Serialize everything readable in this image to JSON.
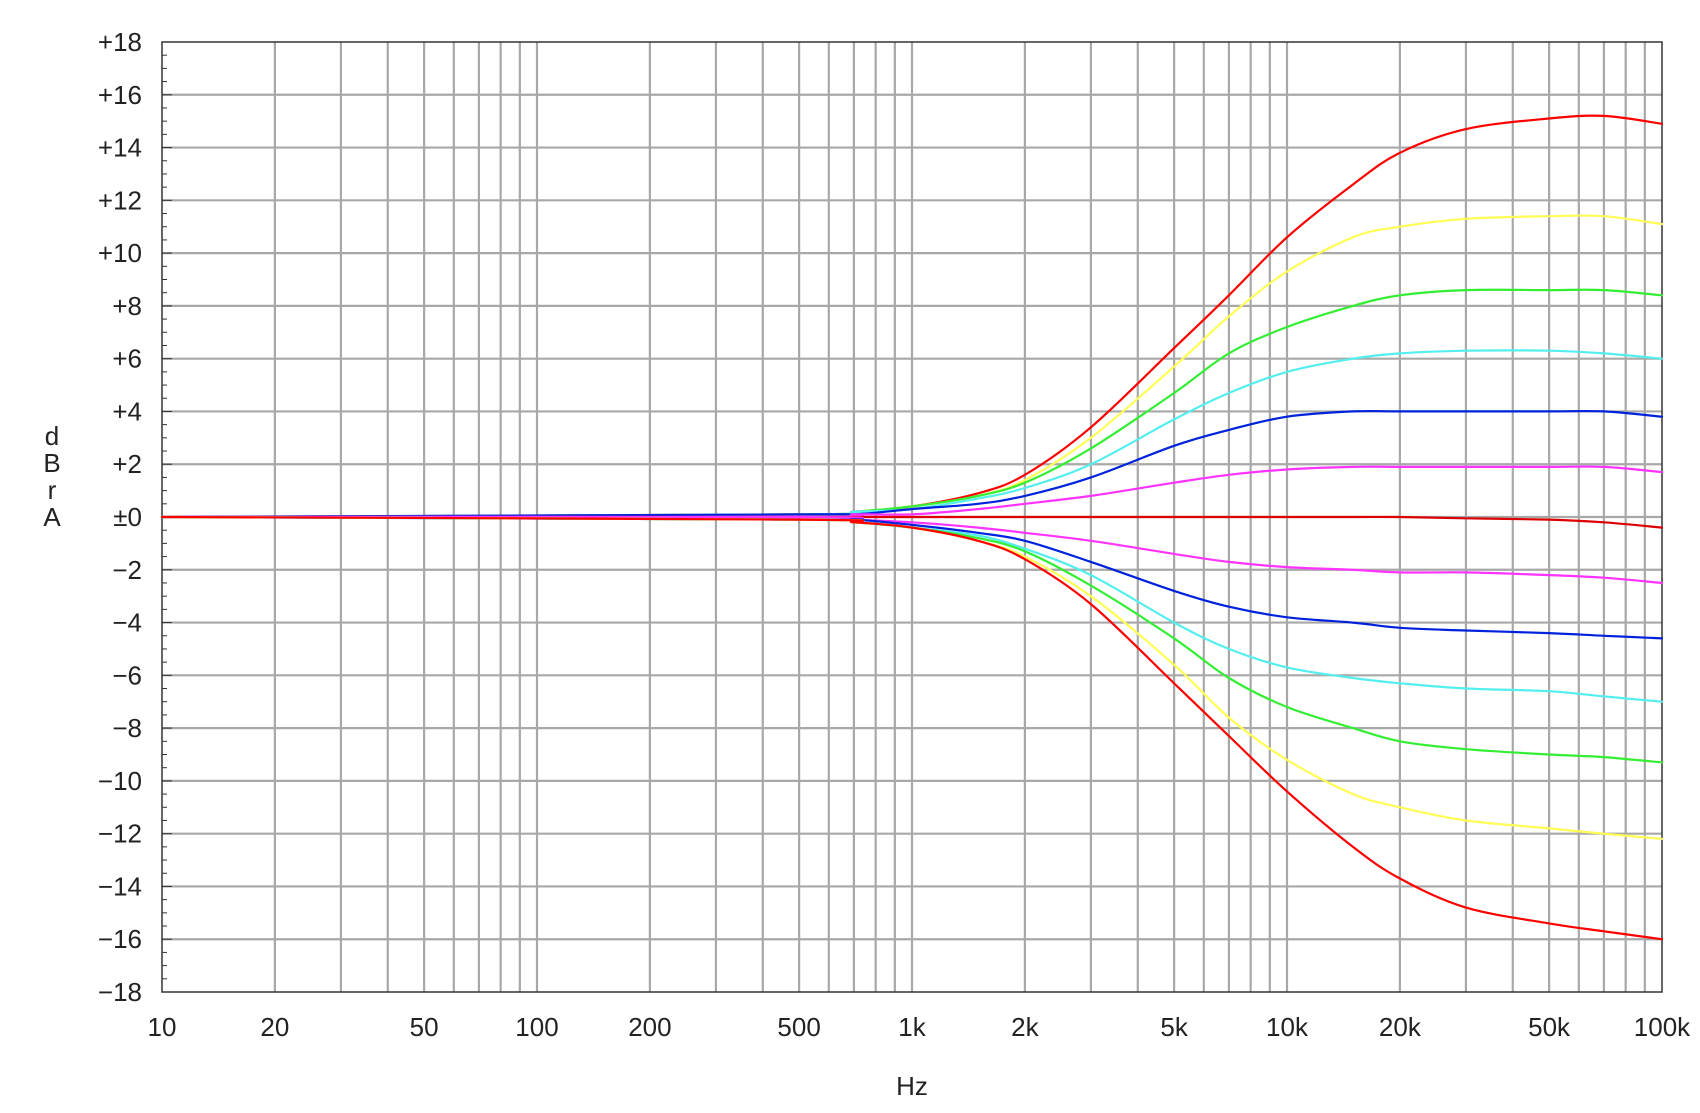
{
  "chart_data": {
    "type": "line",
    "title": "",
    "xlabel": "Hz",
    "ylabel": "dBrA",
    "x_scale": "log",
    "xlim": [
      10,
      100000
    ],
    "ylim": [
      -18,
      18
    ],
    "grid": true,
    "legend": "none",
    "x_ticks": [
      {
        "v": 10,
        "label": "10"
      },
      {
        "v": 20,
        "label": "20"
      },
      {
        "v": 50,
        "label": "50"
      },
      {
        "v": 100,
        "label": "100"
      },
      {
        "v": 200,
        "label": "200"
      },
      {
        "v": 500,
        "label": "500"
      },
      {
        "v": 1000,
        "label": "1k"
      },
      {
        "v": 2000,
        "label": "2k"
      },
      {
        "v": 5000,
        "label": "5k"
      },
      {
        "v": 10000,
        "label": "10k"
      },
      {
        "v": 20000,
        "label": "20k"
      },
      {
        "v": 50000,
        "label": "50k"
      },
      {
        "v": 100000,
        "label": "100k"
      }
    ],
    "y_ticks": [
      {
        "v": 18,
        "label": "+18"
      },
      {
        "v": 16,
        "label": "+16"
      },
      {
        "v": 14,
        "label": "+14"
      },
      {
        "v": 12,
        "label": "+12"
      },
      {
        "v": 10,
        "label": "+10"
      },
      {
        "v": 8,
        "label": "+8"
      },
      {
        "v": 6,
        "label": "+6"
      },
      {
        "v": 4,
        "label": "+4"
      },
      {
        "v": 2,
        "label": "+2"
      },
      {
        "v": 0,
        "label": "±0"
      },
      {
        "v": -2,
        "label": "−2"
      },
      {
        "v": -4,
        "label": "−4"
      },
      {
        "v": -6,
        "label": "−6"
      },
      {
        "v": -8,
        "label": "−8"
      },
      {
        "v": -10,
        "label": "−10"
      },
      {
        "v": -12,
        "label": "−12"
      },
      {
        "v": -14,
        "label": "−14"
      },
      {
        "v": -16,
        "label": "−16"
      },
      {
        "v": -18,
        "label": "−18"
      }
    ],
    "x": [
      10,
      500,
      700,
      1000,
      1500,
      2000,
      3000,
      5000,
      7000,
      10000,
      15000,
      20000,
      30000,
      50000,
      70000,
      100000
    ],
    "series": [
      {
        "color": "#ff0000",
        "values": [
          0,
          0.1,
          0.2,
          0.4,
          0.9,
          1.6,
          3.4,
          6.4,
          8.4,
          10.6,
          12.6,
          13.8,
          14.7,
          15.1,
          15.2,
          14.9
        ]
      },
      {
        "color": "#ffff55",
        "values": [
          0,
          0.1,
          0.2,
          0.4,
          0.8,
          1.4,
          3.0,
          5.7,
          7.6,
          9.3,
          10.6,
          11.0,
          11.3,
          11.4,
          11.4,
          11.1
        ]
      },
      {
        "color": "#33ee33",
        "values": [
          0,
          0.1,
          0.2,
          0.4,
          0.8,
          1.3,
          2.6,
          4.7,
          6.2,
          7.2,
          8.0,
          8.4,
          8.6,
          8.6,
          8.6,
          8.4
        ]
      },
      {
        "color": "#55eeee",
        "values": [
          0,
          0.1,
          0.2,
          0.3,
          0.7,
          1.1,
          2.0,
          3.7,
          4.7,
          5.5,
          6.0,
          6.2,
          6.3,
          6.3,
          6.2,
          6.0
        ]
      },
      {
        "color": "#0022dd",
        "values": [
          0,
          0.1,
          0.1,
          0.3,
          0.5,
          0.8,
          1.5,
          2.7,
          3.3,
          3.8,
          4.0,
          4.0,
          4.0,
          4.0,
          4.0,
          3.8
        ]
      },
      {
        "color": "#ff33ff",
        "values": [
          0,
          0.0,
          0.1,
          0.1,
          0.3,
          0.5,
          0.8,
          1.3,
          1.6,
          1.8,
          1.9,
          1.9,
          1.9,
          1.9,
          1.9,
          1.7
        ]
      },
      {
        "color": "#dd0000",
        "values": [
          0,
          0.0,
          0.0,
          0.0,
          0.0,
          0.0,
          0.0,
          0.0,
          0.0,
          0.0,
          0.0,
          0.0,
          -0.05,
          -0.1,
          -0.2,
          -0.4
        ]
      },
      {
        "color": "#ff33ff",
        "values": [
          0,
          0.0,
          -0.1,
          -0.2,
          -0.4,
          -0.6,
          -0.9,
          -1.4,
          -1.7,
          -1.9,
          -2.0,
          -2.1,
          -2.1,
          -2.2,
          -2.3,
          -2.5
        ]
      },
      {
        "color": "#0022dd",
        "values": [
          0,
          -0.1,
          -0.1,
          -0.3,
          -0.6,
          -0.9,
          -1.7,
          -2.8,
          -3.4,
          -3.8,
          -4.0,
          -4.2,
          -4.3,
          -4.4,
          -4.5,
          -4.6
        ]
      },
      {
        "color": "#55eeee",
        "values": [
          0,
          -0.1,
          -0.2,
          -0.4,
          -0.7,
          -1.2,
          -2.2,
          -4.0,
          -5.0,
          -5.7,
          -6.1,
          -6.3,
          -6.5,
          -6.6,
          -6.8,
          -7.0
        ]
      },
      {
        "color": "#33ee33",
        "values": [
          0,
          -0.1,
          -0.2,
          -0.4,
          -0.8,
          -1.3,
          -2.6,
          -4.6,
          -6.1,
          -7.2,
          -8.0,
          -8.5,
          -8.8,
          -9.0,
          -9.1,
          -9.3
        ]
      },
      {
        "color": "#ffff55",
        "values": [
          0,
          -0.1,
          -0.2,
          -0.4,
          -0.9,
          -1.5,
          -3.0,
          -5.6,
          -7.6,
          -9.2,
          -10.5,
          -11.0,
          -11.5,
          -11.8,
          -12.0,
          -12.2
        ]
      },
      {
        "color": "#ff0000",
        "values": [
          0,
          -0.1,
          -0.2,
          -0.4,
          -0.9,
          -1.6,
          -3.3,
          -6.3,
          -8.3,
          -10.4,
          -12.5,
          -13.7,
          -14.8,
          -15.4,
          -15.7,
          -16.0
        ]
      }
    ]
  }
}
